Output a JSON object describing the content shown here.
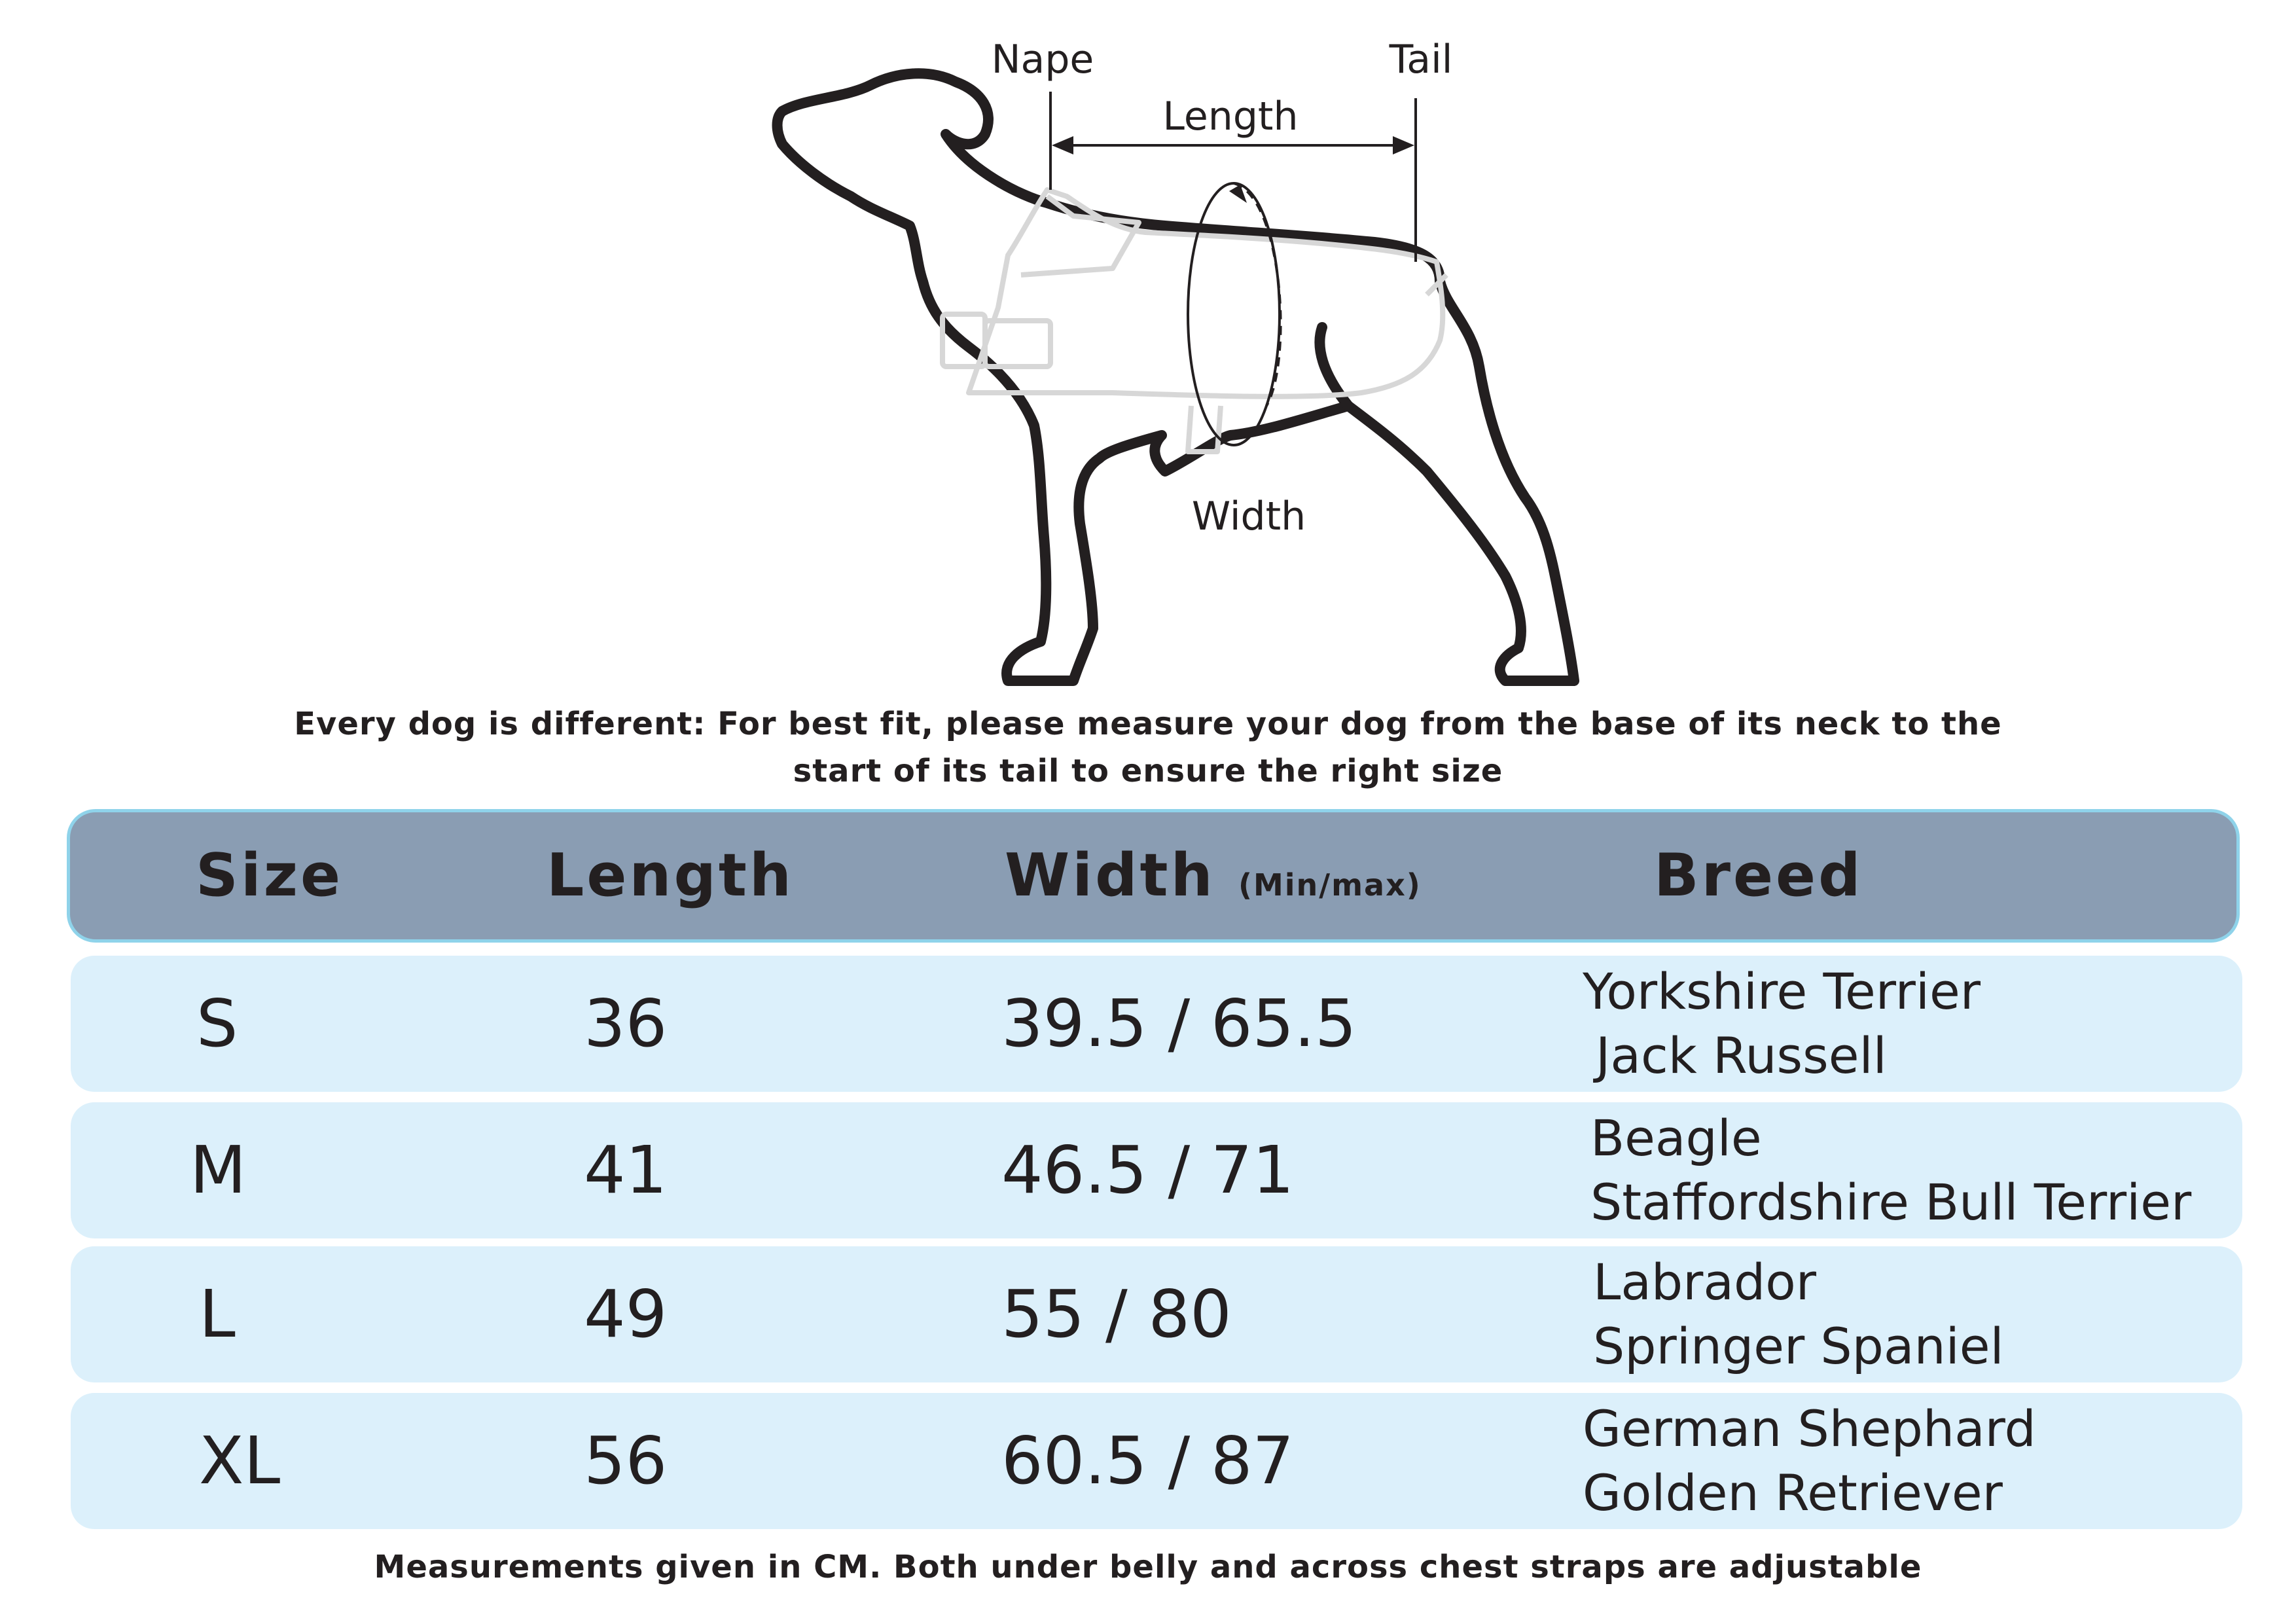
{
  "diagram": {
    "labels": {
      "nape": "Nape",
      "tail": "Tail",
      "length": "Length",
      "width": "Width"
    }
  },
  "notes": {
    "top_line1": "Every dog is different: For best fit, please measure your dog from the base of its neck to the",
    "top_line2": "start of its tail to ensure the right size",
    "bottom": "Measurements given in CM. Both under belly and across chest straps are adjustable"
  },
  "table": {
    "headers": {
      "size": "Size",
      "length": "Length",
      "width": "Width",
      "width_unit": "(Min/max)",
      "breed": "Breed"
    },
    "rows": [
      {
        "size": "S",
        "length": "36",
        "width": "39.5 / 65.5",
        "breeds": [
          "Yorkshire Terrier",
          "Jack Russell"
        ]
      },
      {
        "size": "M",
        "length": "41",
        "width": "46.5 / 71",
        "breeds": [
          "Beagle",
          "Staffordshire Bull Terrier"
        ]
      },
      {
        "size": "L",
        "length": "49",
        "width": "55 / 80",
        "breeds": [
          "Labrador",
          "Springer Spaniel"
        ]
      },
      {
        "size": "XL",
        "length": "56",
        "width": "60.5 / 87",
        "breeds": [
          "German Shephard",
          "Golden Retriever"
        ]
      }
    ]
  },
  "colors": {
    "header_bg": "#8a9db3",
    "header_border": "#8fd3ea",
    "row_bg": "#dcf0fb",
    "text": "#231f20"
  }
}
